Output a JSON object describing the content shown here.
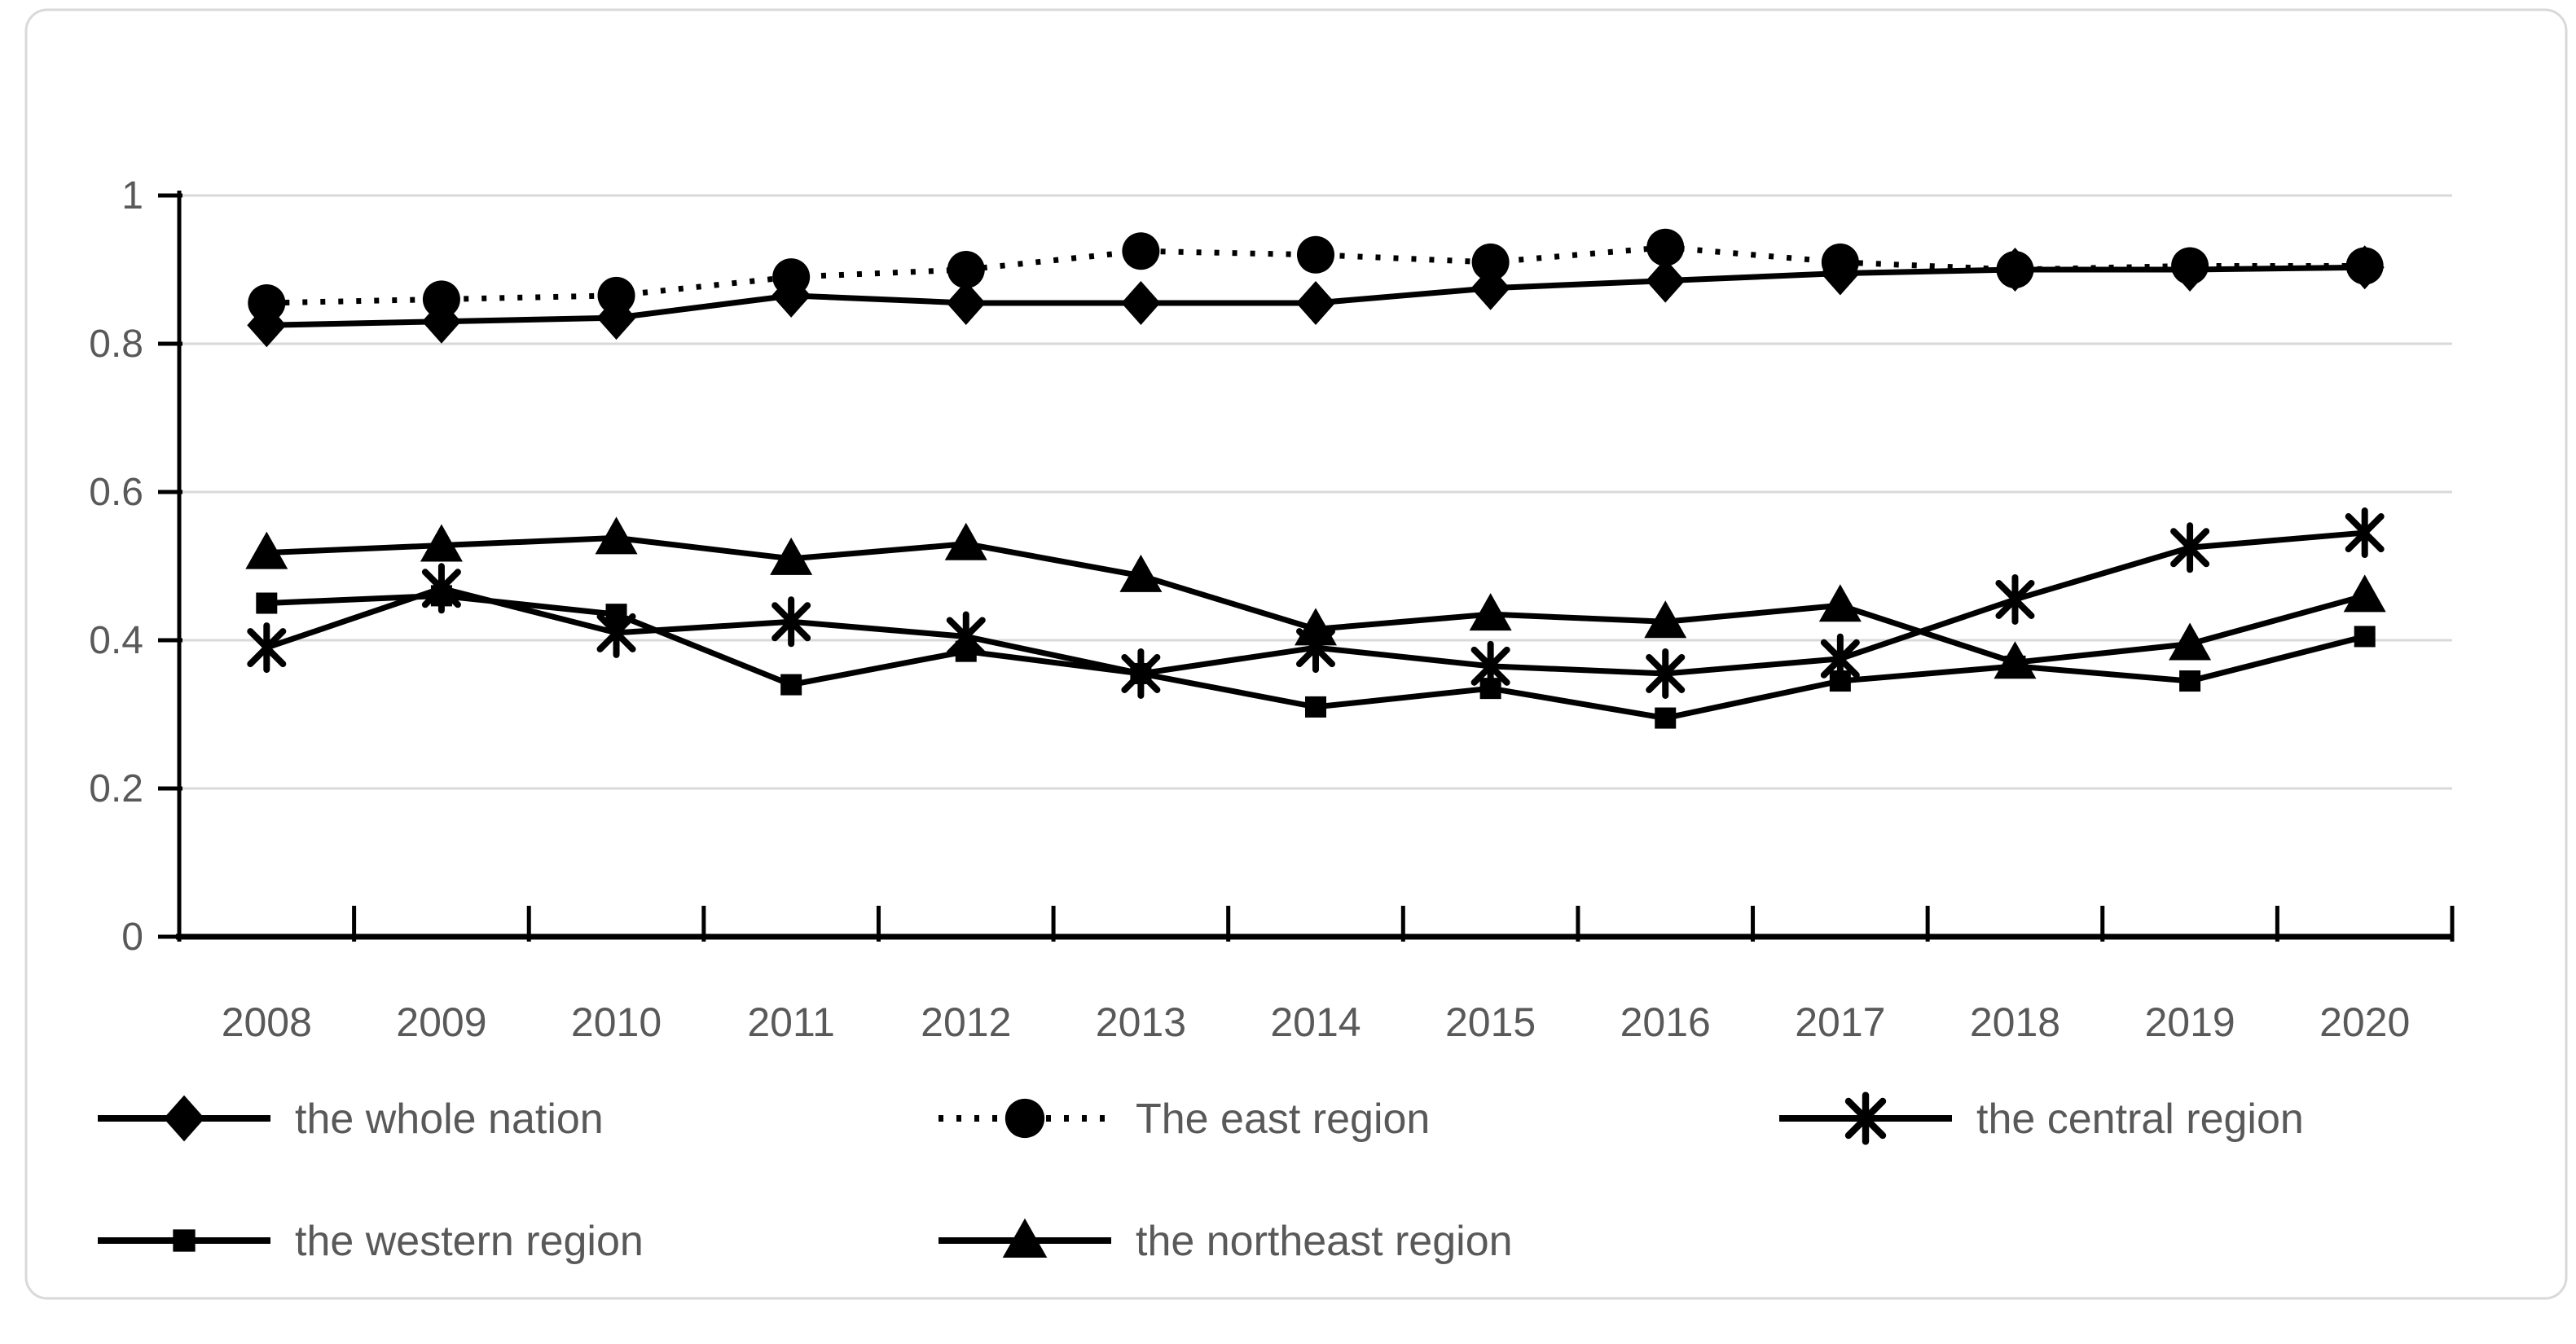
{
  "chart_data": {
    "type": "line",
    "title": "",
    "xlabel": "",
    "ylabel": "",
    "x": [
      2008,
      2009,
      2010,
      2011,
      2012,
      2013,
      2014,
      2015,
      2016,
      2017,
      2018,
      2019,
      2020
    ],
    "series": [
      {
        "name": "the whole nation",
        "marker": "diamond",
        "line": "solid",
        "values": [
          0.825,
          0.83,
          0.835,
          0.865,
          0.855,
          0.855,
          0.855,
          0.875,
          0.885,
          0.895,
          0.9,
          0.9,
          0.903
        ]
      },
      {
        "name": "The east region",
        "marker": "circle",
        "line": "dotted",
        "values": [
          0.855,
          0.86,
          0.865,
          0.89,
          0.9,
          0.925,
          0.92,
          0.91,
          0.93,
          0.91,
          0.9,
          0.905,
          0.905
        ]
      },
      {
        "name": "the central region",
        "marker": "asterisk",
        "line": "solid",
        "values": [
          0.39,
          0.47,
          0.41,
          0.425,
          0.405,
          0.355,
          0.39,
          0.365,
          0.355,
          0.375,
          0.455,
          0.525,
          0.545
        ]
      },
      {
        "name": "the western region",
        "marker": "square",
        "line": "solid",
        "values": [
          0.45,
          0.46,
          0.435,
          0.34,
          0.385,
          0.355,
          0.31,
          0.335,
          0.295,
          0.345,
          0.365,
          0.345,
          0.405
        ]
      },
      {
        "name": "the northeast region",
        "marker": "triangle",
        "line": "solid",
        "values": [
          0.518,
          0.528,
          0.538,
          0.51,
          0.53,
          0.487,
          0.415,
          0.435,
          0.425,
          0.447,
          0.37,
          0.395,
          0.46
        ]
      }
    ],
    "ylim": [
      0,
      1
    ],
    "yticks": [
      0,
      0.2,
      0.4,
      0.6,
      0.8,
      1
    ],
    "ytick_labels": [
      "0",
      "0.2",
      "0.4",
      "0.6",
      "0.8",
      "1"
    ],
    "grid": "horizontal-only",
    "legend_position": "bottom-two-rows"
  },
  "colors": {
    "series": "#000000",
    "axis_text": "#595959",
    "legend_text": "#595959",
    "gridline": "#d9d9d9",
    "axis_line": "#000000",
    "frame_border": "#d9d9d9",
    "background": "#ffffff"
  }
}
